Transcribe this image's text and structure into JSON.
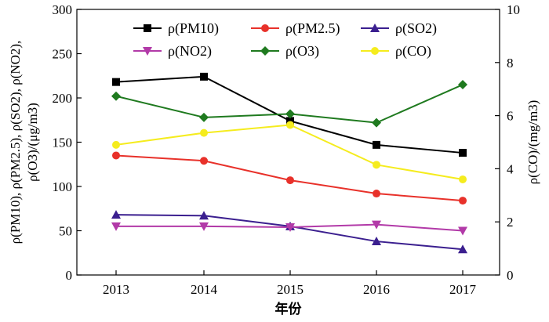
{
  "chart_data": {
    "type": "line",
    "x": [
      2013,
      2014,
      2015,
      2016,
      2017
    ],
    "xlabel": "年份",
    "ylabel_left": "ρ(PM10), ρ(PM2.5), ρ(SO2), ρ(NO2), ρ(O3)/(μg/m3)",
    "ylabel_right": "ρ(CO)/(mg/m3)",
    "ylim_left": [
      0,
      300
    ],
    "yticks_left": [
      0,
      50,
      100,
      150,
      200,
      250,
      300
    ],
    "ylim_right": [
      0,
      10
    ],
    "yticks_right": [
      0,
      2,
      4,
      6,
      8,
      10
    ],
    "grid": false,
    "legend_placement": "top",
    "series": [
      {
        "name": "ρ(PM10)",
        "axis": "left",
        "color": "#000000",
        "marker": "square",
        "values": [
          218,
          224,
          174,
          147,
          138
        ]
      },
      {
        "name": "ρ(PM2.5)",
        "axis": "left",
        "color": "#e8312a",
        "marker": "circle",
        "values": [
          135,
          129,
          107,
          92,
          84
        ]
      },
      {
        "name": "ρ(SO2)",
        "axis": "left",
        "color": "#3b1f8f",
        "marker": "triangle-up",
        "values": [
          68,
          67,
          55,
          38,
          29
        ]
      },
      {
        "name": "ρ(NO2)",
        "axis": "left",
        "color": "#b23aa8",
        "marker": "triangle-down",
        "values": [
          55,
          55,
          54,
          57,
          50
        ]
      },
      {
        "name": "ρ(O3)",
        "axis": "left",
        "color": "#1f7a1f",
        "marker": "diamond",
        "values": [
          202,
          178,
          182,
          172,
          215
        ]
      },
      {
        "name": "ρ(CO)",
        "axis": "right",
        "color": "#f5ec1e",
        "marker": "circle",
        "values": [
          4.9,
          5.35,
          5.65,
          4.15,
          3.6
        ]
      }
    ]
  }
}
